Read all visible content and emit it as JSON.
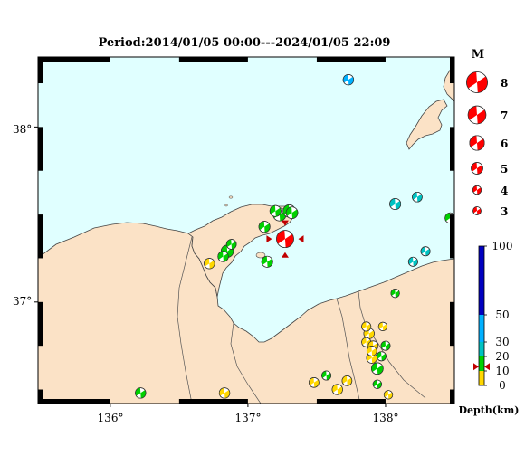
{
  "title": "Period:2014/01/05 00:00---2024/01/05 22:09",
  "map": {
    "lat_labels": [
      "38°",
      "37°"
    ],
    "lon_labels": [
      "136°",
      "137°",
      "138°"
    ],
    "colors": {
      "sea": "#e0ffff",
      "land": "#fbe2c6",
      "coast": "#444444",
      "frame": "#000000"
    }
  },
  "magnitude_legend": {
    "title": "M",
    "entries": [
      {
        "label": "8",
        "mag": 8
      },
      {
        "label": "7",
        "mag": 7
      },
      {
        "label": "6",
        "mag": 6
      },
      {
        "label": "5",
        "mag": 5
      },
      {
        "label": "4",
        "mag": 4
      },
      {
        "label": "3",
        "mag": 3
      }
    ],
    "color": "#ff0000"
  },
  "depth_scale": {
    "title": "Depth(km)",
    "ticks": [
      "100",
      "50",
      "30",
      "20",
      "10",
      "0"
    ],
    "bands": [
      {
        "from": 0,
        "to": 10,
        "color": "#ffd700"
      },
      {
        "from": 10,
        "to": 20,
        "color": "#00d000"
      },
      {
        "from": 20,
        "to": 30,
        "color": "#00c2c2"
      },
      {
        "from": 30,
        "to": 50,
        "color": "#00b0ff"
      },
      {
        "from": 50,
        "to": 100,
        "color": "#0000c0"
      }
    ],
    "marker_depth": 13,
    "marker_color": "#c00000"
  },
  "events": [
    {
      "lon": 137.27,
      "lat": 37.36,
      "mag": 6.8,
      "depth": 13,
      "color": "#ff0000",
      "main": true
    },
    {
      "lon": 137.23,
      "lat": 37.5,
      "mag": 5.4,
      "depth": 14
    },
    {
      "lon": 137.3,
      "lat": 37.52,
      "mag": 5.2,
      "depth": 14
    },
    {
      "lon": 137.32,
      "lat": 37.51,
      "mag": 5.0,
      "depth": 13
    },
    {
      "lon": 137.2,
      "lat": 37.52,
      "mag": 4.8,
      "depth": 12
    },
    {
      "lon": 137.12,
      "lat": 37.43,
      "mag": 4.8,
      "depth": 13
    },
    {
      "lon": 136.85,
      "lat": 37.29,
      "mag": 5.2,
      "depth": 12
    },
    {
      "lon": 136.82,
      "lat": 37.26,
      "mag": 4.6,
      "depth": 12
    },
    {
      "lon": 136.72,
      "lat": 37.22,
      "mag": 4.6,
      "depth": 8
    },
    {
      "lon": 137.14,
      "lat": 37.23,
      "mag": 4.8,
      "depth": 12
    },
    {
      "lon": 136.88,
      "lat": 37.33,
      "mag": 4.4,
      "depth": 12
    },
    {
      "lon": 137.73,
      "lat": 38.27,
      "mag": 4.6,
      "depth": 35
    },
    {
      "lon": 138.07,
      "lat": 37.56,
      "mag": 4.8,
      "depth": 25
    },
    {
      "lon": 138.23,
      "lat": 37.6,
      "mag": 4.4,
      "depth": 25
    },
    {
      "lon": 138.47,
      "lat": 37.48,
      "mag": 4.6,
      "depth": 14
    },
    {
      "lon": 138.2,
      "lat": 37.23,
      "mag": 4.2,
      "depth": 25
    },
    {
      "lon": 138.29,
      "lat": 37.29,
      "mag": 4.2,
      "depth": 25
    },
    {
      "lon": 138.07,
      "lat": 37.05,
      "mag": 4.0,
      "depth": 14
    },
    {
      "lon": 136.22,
      "lat": 36.48,
      "mag": 4.6,
      "depth": 14
    },
    {
      "lon": 136.83,
      "lat": 36.48,
      "mag": 4.6,
      "depth": 8
    },
    {
      "lon": 137.48,
      "lat": 36.54,
      "mag": 4.4,
      "depth": 8
    },
    {
      "lon": 137.57,
      "lat": 36.58,
      "mag": 4.2,
      "depth": 12
    },
    {
      "lon": 137.65,
      "lat": 36.5,
      "mag": 4.6,
      "depth": 8
    },
    {
      "lon": 137.72,
      "lat": 36.55,
      "mag": 4.4,
      "depth": 8
    },
    {
      "lon": 137.88,
      "lat": 36.82,
      "mag": 4.6,
      "depth": 8
    },
    {
      "lon": 137.86,
      "lat": 36.77,
      "mag": 4.2,
      "depth": 8
    },
    {
      "lon": 137.91,
      "lat": 36.75,
      "mag": 4.4,
      "depth": 8
    },
    {
      "lon": 137.9,
      "lat": 36.68,
      "mag": 4.6,
      "depth": 8
    },
    {
      "lon": 137.97,
      "lat": 36.69,
      "mag": 4.2,
      "depth": 14
    },
    {
      "lon": 137.94,
      "lat": 36.62,
      "mag": 5.0,
      "depth": 14
    },
    {
      "lon": 137.9,
      "lat": 36.72,
      "mag": 4.4,
      "depth": 8
    },
    {
      "lon": 137.86,
      "lat": 36.86,
      "mag": 4.2,
      "depth": 8
    },
    {
      "lon": 137.98,
      "lat": 36.86,
      "mag": 4.0,
      "depth": 8
    },
    {
      "lon": 138.0,
      "lat": 36.75,
      "mag": 4.2,
      "depth": 14
    },
    {
      "lon": 137.94,
      "lat": 36.53,
      "mag": 4.0,
      "depth": 14
    },
    {
      "lon": 138.02,
      "lat": 36.47,
      "mag": 4.0,
      "depth": 8
    }
  ]
}
